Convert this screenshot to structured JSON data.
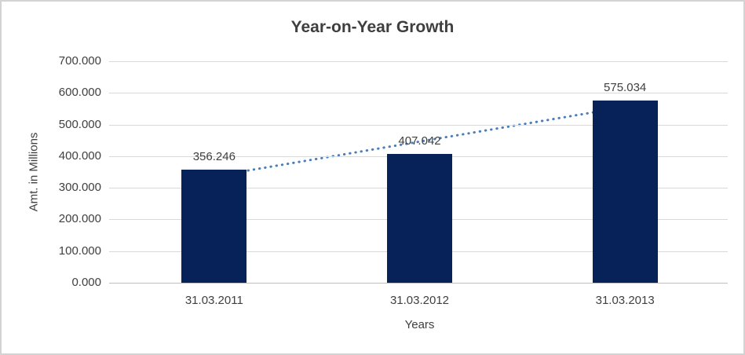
{
  "chart_data": {
    "type": "bar",
    "title": "Year-on-Year Growth",
    "xlabel": "Years",
    "ylabel": "Amt. in Millions",
    "categories": [
      "31.03.2011",
      "31.03.2012",
      "31.03.2013"
    ],
    "values": [
      356.246,
      407.042,
      575.034
    ],
    "data_labels": [
      "356.246",
      "407.042",
      "575.034"
    ],
    "ylim": [
      0,
      700
    ],
    "ytick_step": 100,
    "ytick_labels": [
      "0.000",
      "100.000",
      "200.000",
      "300.000",
      "400.000",
      "500.000",
      "600.000",
      "700.000"
    ],
    "grid": "horizontal-only",
    "legend_position": "none",
    "trendline": {
      "type": "linear",
      "style": "dotted"
    },
    "colors": {
      "bar": "#072259",
      "trendline": "#4a7ebb",
      "gridline": "#d9d9d9",
      "axis_line": "#bfbfbf",
      "title_text": "#3f3f3f",
      "axis_text": "#404040",
      "frame_border": "#d3d3d3",
      "background": "#ffffff"
    }
  }
}
